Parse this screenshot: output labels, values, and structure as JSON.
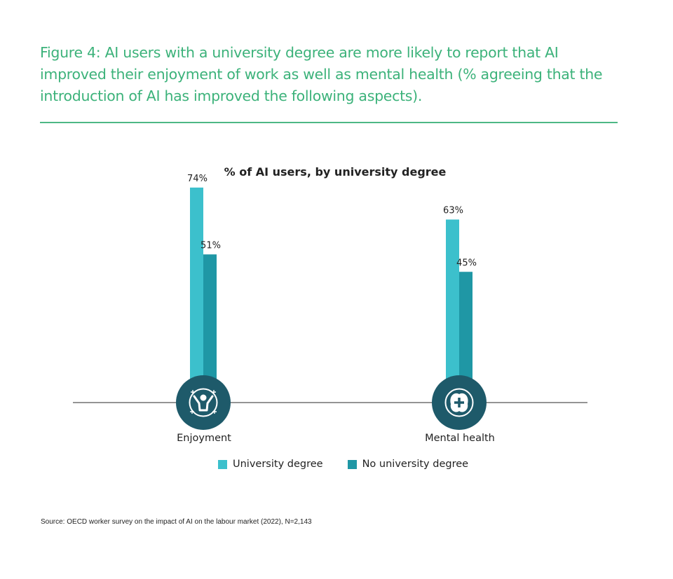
{
  "title": "Figure 4: AI users with a university degree are more likely to report that AI improved their enjoyment of work as well as mental health (% agreeing that the introduction of AI has improved the following aspects).",
  "source": "Source: OECD worker survey on the impact of AI on the labour market (2022), N=2,143",
  "icons": [
    {
      "category": "Enjoyment",
      "name": "happy-person-icon"
    },
    {
      "category": "Mental health",
      "name": "brain-plus-icon"
    }
  ],
  "colors": {
    "title": "#3cb27a",
    "university": "#3cc0cc",
    "no_university": "#1f97a5",
    "icon_circle": "#1e5a6a",
    "axis": "#555555"
  },
  "chart_data": {
    "type": "bar",
    "title": "% of AI users, by university degree",
    "categories": [
      "Enjoyment",
      "Mental health"
    ],
    "series": [
      {
        "name": "University degree",
        "values": [
          74,
          63
        ],
        "labels": [
          "74%",
          "63%"
        ]
      },
      {
        "name": "No university degree",
        "values": [
          51,
          45
        ],
        "labels": [
          "51%",
          "45%"
        ]
      }
    ],
    "xlabel": "",
    "ylabel": "",
    "ylim": [
      0,
      100
    ],
    "grid": false,
    "legend": "bottom"
  }
}
